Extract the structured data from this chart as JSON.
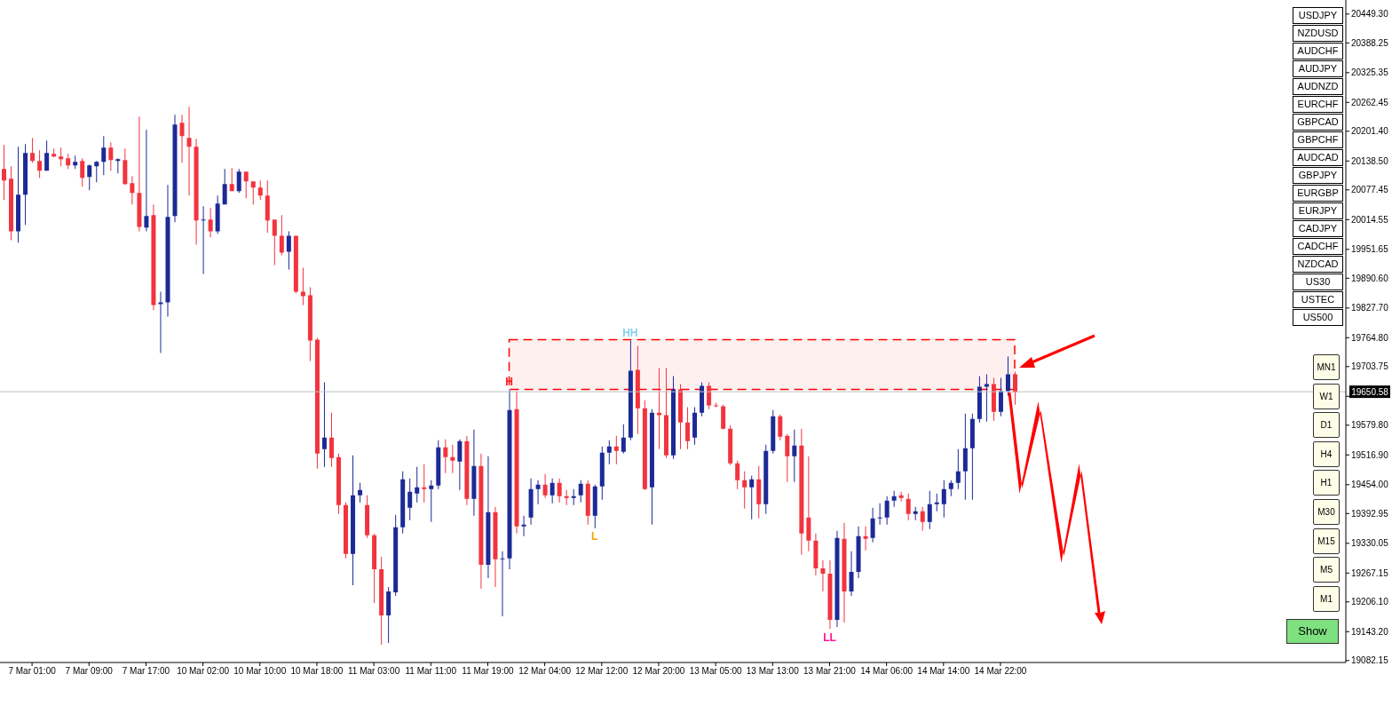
{
  "chart_data": {
    "type": "candlestick",
    "categories": [
      null,
      null,
      null,
      null,
      "7 Mar 01:00",
      null,
      null,
      null,
      null,
      null,
      null,
      null,
      "7 Mar 09:00",
      null,
      null,
      null,
      null,
      null,
      null,
      null,
      "7 Mar 17:00",
      null,
      null,
      null,
      null,
      null,
      null,
      null,
      "10 Mar 02:00",
      null,
      null,
      null,
      null,
      null,
      null,
      null,
      "10 Mar 10:00",
      null,
      null,
      null,
      null,
      null,
      null,
      null,
      "10 Mar 18:00",
      null,
      null,
      null,
      null,
      null,
      null,
      null,
      "11 Mar 03:00",
      null,
      null,
      null,
      null,
      null,
      null,
      null,
      "11 Mar 11:00",
      null,
      null,
      null,
      null,
      null,
      null,
      null,
      "11 Mar 19:00",
      null,
      null,
      null,
      null,
      null,
      null,
      null,
      "12 Mar 04:00",
      null,
      null,
      null,
      null,
      null,
      null,
      null,
      "12 Mar 12:00",
      null,
      null,
      null,
      null,
      null,
      null,
      null,
      "12 Mar 20:00",
      null,
      null,
      null,
      null,
      null,
      null,
      null,
      "13 Mar 05:00",
      null,
      null,
      null,
      null,
      null,
      null,
      null,
      "13 Mar 13:00",
      null,
      null,
      null,
      null,
      null,
      null,
      null,
      "13 Mar 21:00",
      null,
      null,
      null,
      null,
      null,
      null,
      null,
      "14 Mar 06:00",
      null,
      null,
      null,
      null,
      null,
      null,
      null,
      "14 Mar 14:00",
      null,
      null,
      null,
      null,
      null,
      null,
      null,
      "14 Mar 22:00",
      null,
      null,
      null,
      null,
      null,
      null,
      null,
      null,
      null,
      null,
      null,
      null,
      null,
      null,
      null,
      null,
      null,
      null,
      null,
      null,
      null,
      null,
      null,
      null,
      null,
      null,
      null,
      null,
      null,
      null,
      null,
      null,
      null,
      null,
      null,
      null,
      null,
      null,
      null,
      null,
      null,
      null,
      null,
      null,
      null,
      null,
      null,
      null
    ],
    "ohlc": [
      [
        20121.7,
        20172.5,
        20055.9,
        20097.2
      ],
      [
        20101.0,
        20127.3,
        19971.2,
        19990.0
      ],
      [
        19990.0,
        20168.7,
        19965.6,
        20067.1
      ],
      [
        20067.1,
        20174.3,
        20003.2,
        20155.5
      ],
      [
        20155.5,
        20187.5,
        20134.9,
        20138.6
      ],
      [
        20138.6,
        20161.2,
        20102.9,
        20117.9
      ],
      [
        20117.9,
        20181.9,
        20117.9,
        20155.5
      ],
      [
        20153.6,
        20164.9,
        20146.1,
        20148.0
      ],
      [
        20148.0,
        20166.8,
        20127.3,
        20142.4
      ],
      [
        20144.3,
        20153.6,
        20121.7,
        20129.2
      ],
      [
        20129.2,
        20149.9,
        20121.7,
        20136.7
      ],
      [
        20138.6,
        20144.3,
        20084.1,
        20102.9
      ],
      [
        20104.8,
        20131.1,
        20076.5,
        20129.2
      ],
      [
        20127.3,
        20138.6,
        20093.5,
        20136.7
      ],
      [
        20136.7,
        20191.3,
        20108.5,
        20166.8
      ],
      [
        20166.8,
        20178.1,
        20117.9,
        20140.5
      ],
      [
        20138.6,
        20144.3,
        20112.3,
        20142.4
      ],
      [
        20140.5,
        20164.9,
        20087.8,
        20089.7
      ],
      [
        20091.6,
        20106.6,
        20046.5,
        20070.9
      ],
      [
        20070.9,
        20232.6,
        19990.0,
        19999.4
      ],
      [
        19997.6,
        20204.4,
        19990.0,
        20022.0
      ],
      [
        20023.9,
        20046.5,
        19822.7,
        19834.0
      ],
      [
        19835.8,
        19862.2,
        19732.4,
        19839.6
      ],
      [
        19839.6,
        20087.8,
        19809.5,
        20020.1
      ],
      [
        20022.0,
        20236.4,
        20008.9,
        20215.7
      ],
      [
        20219.5,
        20236.4,
        20134.9,
        20191.3
      ],
      [
        20187.5,
        20253.3,
        20065.3,
        20168.7
      ],
      [
        20168.7,
        20185.6,
        19961.8,
        20012.6
      ],
      [
        20012.6,
        20042.7,
        19899.8,
        20014.5
      ],
      [
        20014.5,
        20038.9,
        19976.9,
        19990.0
      ],
      [
        19990.0,
        20065.3,
        19984.4,
        20048.3
      ],
      [
        20046.5,
        20121.7,
        20046.5,
        20089.7
      ],
      [
        20089.7,
        20123.6,
        20074.7,
        20074.7
      ],
      [
        20074.7,
        20121.7,
        20070.9,
        20116.0
      ],
      [
        20116.0,
        20116.0,
        20059.6,
        20095.4
      ],
      [
        20095.4,
        20095.4,
        20046.5,
        20082.2
      ],
      [
        20082.2,
        20097.2,
        20055.9,
        20065.3
      ],
      [
        20065.3,
        20097.2,
        19986.3,
        20012.6
      ],
      [
        20014.5,
        20014.5,
        19918.6,
        19980.6
      ],
      [
        19980.6,
        20023.9,
        19939.3,
        19944.9
      ],
      [
        19946.8,
        19990.0,
        19909.2,
        19980.6
      ],
      [
        19980.6,
        19980.6,
        19858.4,
        19862.2
      ],
      [
        19862.2,
        19912.9,
        19834.0,
        19852.8
      ],
      [
        19854.6,
        19871.6,
        19715.5,
        19758.7
      ],
      [
        19760.6,
        19764.4,
        19487.9,
        19519.9
      ],
      [
        19529.3,
        19670.3,
        19491.7,
        19553.7
      ],
      [
        19553.7,
        19606.4,
        19491.7,
        19510.5
      ],
      [
        19512.3,
        19519.9,
        19392.1,
        19410.8
      ],
      [
        19410.8,
        19416.5,
        19298.0,
        19307.4
      ],
      [
        19307.4,
        19516.1,
        19241.5,
        19431.5
      ],
      [
        19431.5,
        19457.8,
        19416.5,
        19442.8
      ],
      [
        19410.8,
        19431.5,
        19341.2,
        19346.9
      ],
      [
        19346.9,
        19350.6,
        19203.9,
        19275.4
      ],
      [
        19275.4,
        19301.7,
        19115.6,
        19177.6
      ],
      [
        19177.6,
        19237.8,
        19119.3,
        19228.4
      ],
      [
        19226.5,
        19390.1,
        19219.0,
        19363.8
      ],
      [
        19363.8,
        19482.3,
        19350.6,
        19465.4
      ],
      [
        19405.2,
        19467.2,
        19378.9,
        19439.0
      ],
      [
        19435.3,
        19491.7,
        19416.5,
        19448.4
      ],
      [
        19448.4,
        19497.3,
        19416.5,
        19444.7
      ],
      [
        19444.7,
        19463.5,
        19375.1,
        19452.2
      ],
      [
        19452.2,
        19548.1,
        19444.7,
        19533.0
      ],
      [
        19533.0,
        19550.0,
        19478.5,
        19512.3
      ],
      [
        19512.3,
        19538.7,
        19478.5,
        19504.8
      ],
      [
        19503.0,
        19550.0,
        19442.8,
        19546.2
      ],
      [
        19546.2,
        19557.5,
        19410.8,
        19424.0
      ],
      [
        19424.0,
        19570.7,
        19388.3,
        19493.6
      ],
      [
        19493.6,
        19519.9,
        19234.0,
        19284.8
      ],
      [
        19284.8,
        19514.2,
        19256.6,
        19395.8
      ],
      [
        19395.8,
        19407.1,
        19237.8,
        19296.1
      ],
      [
        19296.1,
        19313.0,
        19175.7,
        19298.0
      ],
      [
        19298.0,
        19655.3,
        19275.4,
        19612.0
      ],
      [
        19613.9,
        19651.5,
        19350.6,
        19365.7
      ],
      [
        19365.7,
        19388.3,
        19345.0,
        19369.5
      ],
      [
        19384.5,
        19467.2,
        19369.5,
        19444.7
      ],
      [
        19444.7,
        19463.5,
        19412.7,
        19454.1
      ],
      [
        19454.1,
        19476.6,
        19425.9,
        19431.5
      ],
      [
        19431.5,
        19467.2,
        19414.6,
        19457.8
      ],
      [
        19457.8,
        19467.2,
        19416.5,
        19429.6
      ],
      [
        19429.6,
        19442.8,
        19410.8,
        19425.9
      ],
      [
        19425.9,
        19444.7,
        19410.8,
        19429.6
      ],
      [
        19431.5,
        19463.5,
        19416.5,
        19455.9
      ],
      [
        19455.9,
        19463.5,
        19369.5,
        19388.3
      ],
      [
        19388.3,
        19454.1,
        19362.0,
        19450.3
      ],
      [
        19450.3,
        19534.9,
        19422.1,
        19521.7
      ],
      [
        19521.7,
        19548.1,
        19497.3,
        19534.9
      ],
      [
        19534.9,
        19557.5,
        19497.3,
        19525.5
      ],
      [
        19523.6,
        19582.0,
        19519.9,
        19553.7
      ],
      [
        19553.7,
        19758.7,
        19548.1,
        19694.8
      ],
      [
        19696.7,
        19747.5,
        19561.3,
        19615.8
      ],
      [
        19615.8,
        19632.7,
        19442.8,
        19444.7
      ],
      [
        19448.4,
        19613.9,
        19369.5,
        19606.4
      ],
      [
        19606.4,
        19700.5,
        19529.3,
        19600.8
      ],
      [
        19600.8,
        19700.5,
        19510.5,
        19516.1
      ],
      [
        19516.1,
        19683.5,
        19508.6,
        19655.3
      ],
      [
        19655.3,
        19666.6,
        19529.3,
        19585.7
      ],
      [
        19585.7,
        19617.7,
        19529.3,
        19546.2
      ],
      [
        19553.7,
        19617.7,
        19538.7,
        19606.4
      ],
      [
        19606.4,
        19670.3,
        19598.9,
        19662.8
      ],
      [
        19662.8,
        19670.3,
        19613.9,
        19621.5
      ],
      [
        19621.5,
        19627.1,
        19617.7,
        19619.6
      ],
      [
        19619.6,
        19623.3,
        19570.7,
        19572.6
      ],
      [
        19572.6,
        19580.1,
        19495.4,
        19499.2
      ],
      [
        19499.2,
        19504.8,
        19444.7,
        19463.5
      ],
      [
        19463.5,
        19482.3,
        19403.3,
        19448.4
      ],
      [
        19448.4,
        19472.9,
        19380.8,
        19465.4
      ],
      [
        19465.4,
        19493.6,
        19382.6,
        19412.7
      ],
      [
        19412.7,
        19538.7,
        19392.1,
        19525.5
      ],
      [
        19525.5,
        19612.0,
        19519.9,
        19598.9
      ],
      [
        19598.9,
        19602.6,
        19548.1,
        19555.6
      ],
      [
        19557.5,
        19561.3,
        19459.7,
        19514.2
      ],
      [
        19514.2,
        19570.7,
        19459.7,
        19536.8
      ],
      [
        19536.8,
        19572.6,
        19305.5,
        19350.6
      ],
      [
        19384.5,
        19514.2,
        19313.0,
        19335.6
      ],
      [
        19335.6,
        19350.6,
        19262.2,
        19277.3
      ],
      [
        19277.3,
        19294.2,
        19228.4,
        19266.0
      ],
      [
        19266.0,
        19294.2,
        19149.4,
        19168.2
      ],
      [
        19168.2,
        19356.3,
        19153.2,
        19341.2
      ],
      [
        19339.4,
        19373.2,
        19162.6,
        19228.4
      ],
      [
        19228.4,
        19313.0,
        19219.0,
        19269.7
      ],
      [
        19269.7,
        19365.7,
        19256.6,
        19345.0
      ],
      [
        19345.0,
        19365.7,
        19314.9,
        19339.4
      ],
      [
        19341.2,
        19405.2,
        19331.8,
        19382.6
      ],
      [
        19382.6,
        19414.6,
        19369.5,
        19384.5
      ],
      [
        19384.5,
        19429.6,
        19369.5,
        19420.2
      ],
      [
        19420.2,
        19440.9,
        19407.1,
        19429.6
      ],
      [
        19431.5,
        19439.0,
        19418.3,
        19425.9
      ],
      [
        19424.0,
        19435.3,
        19378.9,
        19392.1
      ],
      [
        19392.1,
        19407.1,
        19378.9,
        19397.7
      ],
      [
        19397.7,
        19407.1,
        19356.3,
        19375.1
      ],
      [
        19375.1,
        19440.9,
        19360.1,
        19412.7
      ],
      [
        19412.7,
        19435.3,
        19397.7,
        19416.5
      ],
      [
        19412.7,
        19463.5,
        19384.5,
        19444.7
      ],
      [
        19444.7,
        19463.5,
        19429.6,
        19457.8
      ],
      [
        19457.8,
        19529.3,
        19444.7,
        19482.3
      ],
      [
        19482.3,
        19604.5,
        19422.1,
        19531.2
      ],
      [
        19531.2,
        19604.5,
        19422.1,
        19593.2
      ],
      [
        19593.2,
        19683.5,
        19585.7,
        19660.9
      ],
      [
        19660.9,
        19687.3,
        19587.6,
        19666.6
      ],
      [
        19666.6,
        19679.7,
        19589.5,
        19608.3
      ],
      [
        19608.3,
        19679.7,
        19598.9,
        19651.5
      ],
      [
        19651.5,
        19724.9,
        19642.1,
        19687.3
      ],
      [
        19687.3,
        19692.9,
        19623.3,
        19649.6
      ],
      null,
      null,
      null,
      null,
      null,
      null,
      null,
      null,
      null,
      null,
      null,
      null,
      null,
      null,
      null,
      null,
      null,
      null,
      null,
      null,
      null,
      null,
      null,
      null,
      null,
      null,
      null,
      null,
      null,
      null,
      null,
      null,
      null,
      null,
      null,
      null,
      null,
      null,
      null,
      null,
      null,
      null,
      null,
      null,
      null,
      null
    ],
    "colors": [
      "#f2343f",
      "#f2343f",
      "#1c2a96",
      "#1c2a96",
      "#f2343f",
      "#f2343f",
      "#1c2a96",
      "#f2343f",
      "#f2343f",
      "#f2343f",
      "#1c2a96",
      "#f2343f",
      "#1c2a96",
      "#1c2a96",
      "#1c2a96",
      "#f2343f",
      "#1c2a96",
      "#f2343f",
      "#f2343f",
      "#f2343f",
      "#1c2a96",
      "#f2343f",
      "#1c2a96",
      "#1c2a96",
      "#1c2a96",
      "#f2343f",
      "#f2343f",
      "#f2343f",
      "#1c2a96",
      "#f2343f",
      "#1c2a96",
      "#1c2a96",
      "#f2343f",
      "#1c2a96",
      "#f2343f",
      "#f2343f",
      "#f2343f",
      "#f2343f",
      "#f2343f",
      "#f2343f",
      "#1c2a96",
      "#f2343f",
      "#f2343f",
      "#f2343f",
      "#f2343f",
      "#1c2a96",
      "#f2343f",
      "#f2343f",
      "#f2343f",
      "#1c2a96",
      "#1c2a96",
      "#f2343f",
      "#f2343f",
      "#f2343f",
      "#1c2a96",
      "#1c2a96",
      "#1c2a96",
      "#1c2a96",
      "#1c2a96",
      "#f2343f",
      "#1c2a96",
      "#1c2a96",
      "#f2343f",
      "#f2343f",
      "#1c2a96",
      "#f2343f",
      "#1c2a96",
      "#f2343f",
      "#1c2a96",
      "#f2343f",
      "#1c2a96",
      "#1c2a96",
      "#f2343f",
      "#1c2a96",
      "#1c2a96",
      "#1c2a96",
      "#f2343f",
      "#1c2a96",
      "#f2343f",
      "#f2343f",
      "#1c2a96",
      "#1c2a96",
      "#f2343f",
      "#1c2a96",
      "#1c2a96",
      "#1c2a96",
      "#f2343f",
      "#1c2a96",
      "#1c2a96",
      "#f2343f",
      "#f2343f",
      "#1c2a96",
      "#f2343f",
      "#f2343f",
      "#1c2a96",
      "#f2343f",
      "#f2343f",
      "#1c2a96",
      "#1c2a96",
      "#f2343f",
      "#f2343f",
      "#f2343f",
      "#f2343f",
      "#f2343f",
      "#f2343f",
      "#1c2a96",
      "#f2343f",
      "#1c2a96",
      "#1c2a96",
      "#f2343f",
      "#f2343f",
      "#1c2a96",
      "#f2343f",
      "#f2343f",
      "#f2343f",
      "#f2343f",
      "#f2343f",
      "#1c2a96",
      "#f2343f",
      "#1c2a96",
      "#1c2a96",
      "#f2343f",
      "#1c2a96",
      "#1c2a96",
      "#1c2a96",
      "#1c2a96",
      "#f2343f",
      "#f2343f",
      "#1c2a96",
      "#f2343f",
      "#1c2a96",
      "#1c2a96",
      "#1c2a96",
      "#1c2a96",
      "#1c2a96",
      "#1c2a96",
      "#1c2a96",
      "#1c2a96",
      "#1c2a96",
      "#f2343f",
      "#1c2a96",
      "#1c2a96",
      "#f2343f",
      null,
      null,
      null,
      null,
      null,
      null,
      null,
      null,
      null,
      null,
      null,
      null,
      null,
      null,
      null,
      null,
      null,
      null,
      null,
      null,
      null,
      null,
      null,
      null,
      null,
      null,
      null,
      null,
      null,
      null,
      null,
      null,
      null,
      null,
      null,
      null,
      null,
      null,
      null,
      null,
      null,
      null,
      null,
      null,
      null,
      null
    ],
    "ylim": [
      19078,
      20479
    ],
    "yticks": [
      {
        "value": 19082.15,
        "label": "19082.15"
      },
      {
        "value": 19143.2,
        "label": "19143.20"
      },
      {
        "value": 19206.1,
        "label": "19206.10"
      },
      {
        "value": 19267.15,
        "label": "19267.15"
      },
      {
        "value": 19330.05,
        "label": "19330.05"
      },
      {
        "value": 19392.95,
        "label": "19392.95"
      },
      {
        "value": 19454,
        "label": "19454.00"
      },
      {
        "value": 19516.9,
        "label": "19516.90"
      },
      {
        "value": 19579.8,
        "label": "19579.80"
      },
      {
        "value": 19640.85,
        "label": null
      },
      {
        "value": 19703.75,
        "label": "19703.75"
      },
      {
        "value": 19764.8,
        "label": "19764.80"
      },
      {
        "value": 19827.7,
        "label": "19827.70"
      },
      {
        "value": 19890.6,
        "label": "19890.60"
      },
      {
        "value": 19951.65,
        "label": "19951.65"
      },
      {
        "value": 20014.55,
        "label": "20014.55"
      },
      {
        "value": 20077.45,
        "label": "20077.45"
      },
      {
        "value": 20138.5,
        "label": "20138.50"
      },
      {
        "value": 20201.4,
        "label": "20201.40"
      },
      {
        "value": 20262.45,
        "label": "20262.45"
      },
      {
        "value": 20325.35,
        "label": "20325.35"
      },
      {
        "value": 20388.25,
        "label": "20388.25"
      },
      {
        "value": 20449.3,
        "label": "20449.30"
      }
    ],
    "ref_lines": [
      {
        "axis": "y",
        "value": 19650.58,
        "label": "19650.58",
        "color": "#c0c0c0"
      }
    ],
    "bands": [
      {
        "axis": "y",
        "from": 19655.3,
        "to": 19760.6,
        "color": "#ff0000"
      }
    ],
    "annotations": [
      {
        "text": "H",
        "y": 19655.3
      },
      {
        "text": "HH",
        "y": 19758.7
      },
      {
        "text": "L",
        "y": 19362.0
      },
      {
        "text": "LL",
        "y": 19149.4
      },
      "USDJPY",
      "NZDUSD",
      "AUDCHF",
      "AUDJPY",
      "AUDNZD",
      "EURCHF",
      "GBPCAD",
      "GBPCHF",
      "AUDCAD",
      "GBPJPY",
      "EURGBP",
      "EURJPY",
      "CADJPY",
      "CADCHF",
      "NZDCAD",
      "US30",
      "USTEC",
      "US500",
      "MN1",
      "W1",
      "D1",
      "H4",
      "H1",
      "M30",
      "M15",
      "M5",
      "M1",
      "Show"
    ]
  }
}
